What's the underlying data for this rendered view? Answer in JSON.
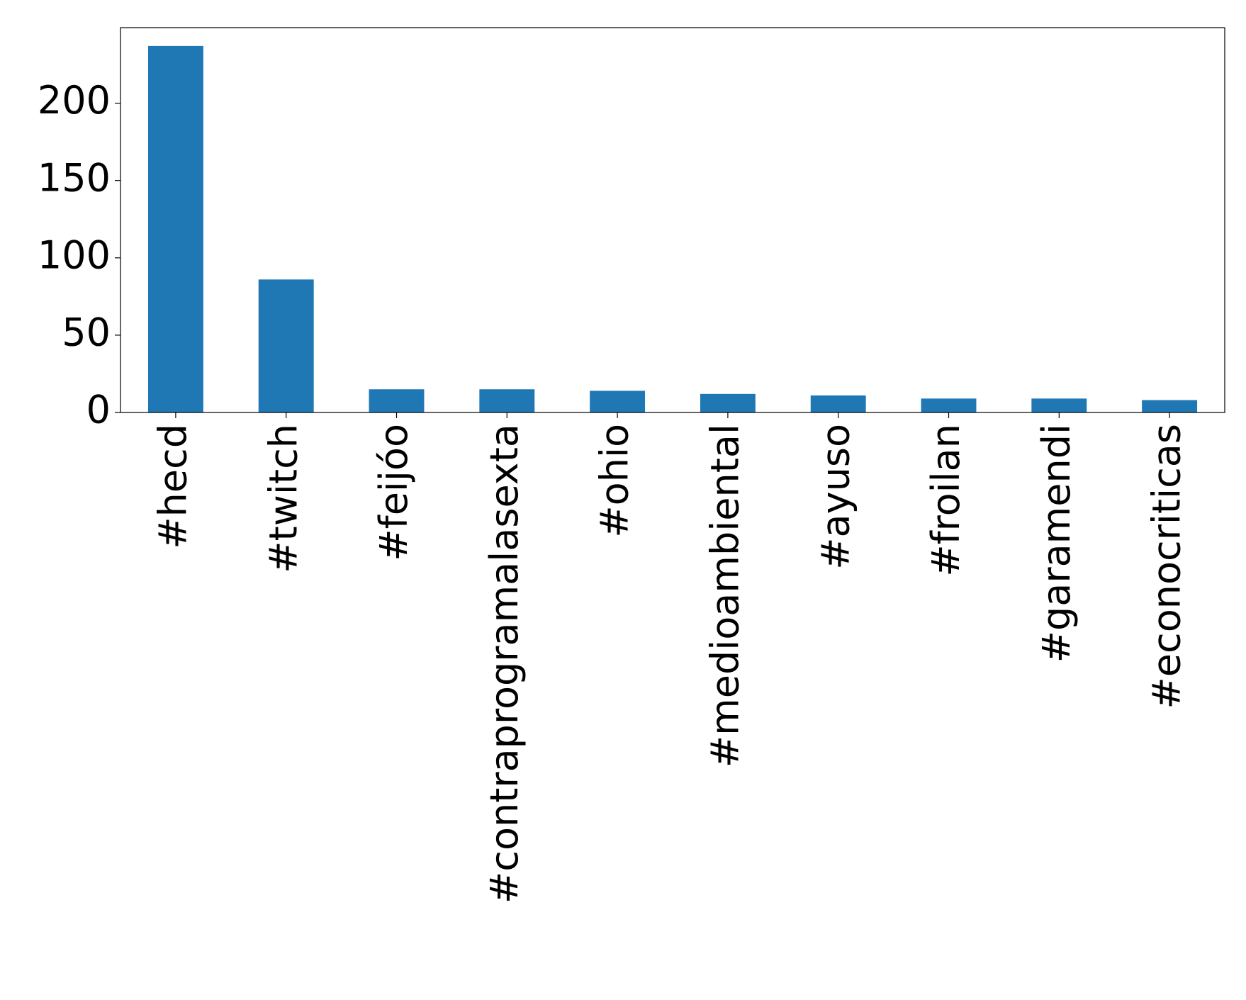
{
  "chart_data": {
    "type": "bar",
    "categories": [
      "#hecd",
      "#twitch",
      "#feijóo",
      "#contraprogramalasexta",
      "#ohio",
      "#medioambiental",
      "#ayuso",
      "#froilan",
      "#garamendi",
      "#econocriticas"
    ],
    "values": [
      237,
      86,
      15,
      15,
      14,
      12,
      11,
      9,
      9,
      8
    ],
    "color": "#1f77b4",
    "ylim": [
      0,
      248.85
    ],
    "yticks": [
      0,
      50,
      100,
      150,
      200
    ],
    "grid": false
  }
}
